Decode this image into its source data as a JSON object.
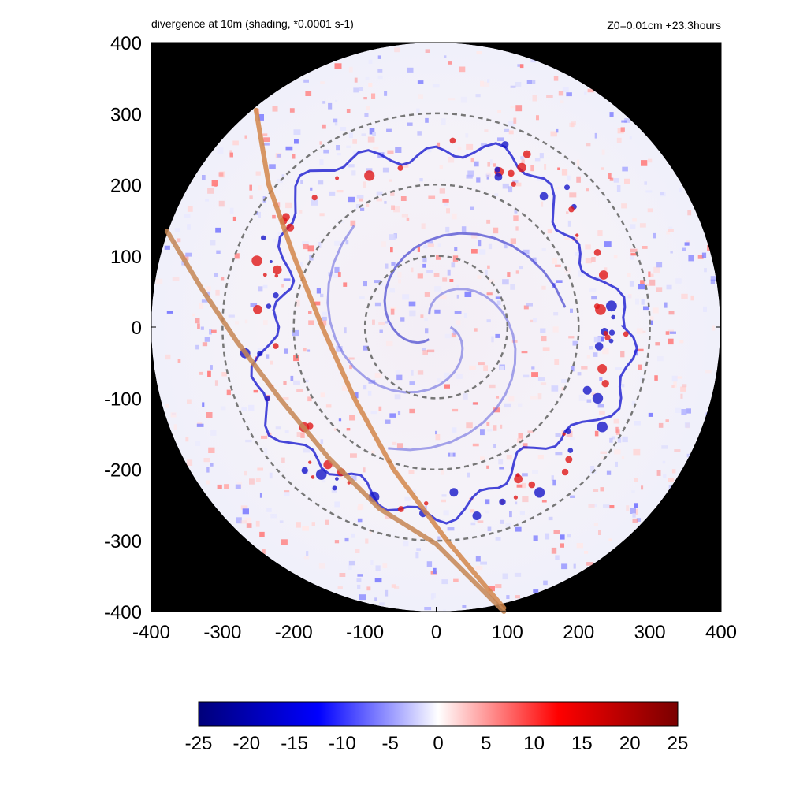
{
  "chart_data": {
    "type": "heatmap",
    "title": "divergence at 10m (shading, *0.0001 s-1)",
    "subtitle": "Z0=0.01cm  +23.3hours",
    "xlim": [
      -400,
      400
    ],
    "ylim": [
      -400,
      400
    ],
    "x_ticks": [
      "-400",
      "-300",
      "-200",
      "-100",
      "0",
      "100",
      "200",
      "300",
      "400"
    ],
    "y_ticks": [
      "400",
      "300",
      "200",
      "100",
      "0",
      "-100",
      "-200",
      "-300",
      "-400"
    ],
    "domain_radius": 400,
    "reference_circles": {
      "radii": [
        100,
        200,
        300
      ],
      "style": "dashed",
      "color": "#777777"
    },
    "track_lines": [
      {
        "color": "#d2864a",
        "points": [
          [
            -253,
            305
          ],
          [
            -235,
            200
          ],
          [
            -200,
            100
          ],
          [
            -160,
            0
          ],
          [
            -115,
            -100
          ],
          [
            -60,
            -200
          ],
          [
            15,
            -300
          ],
          [
            95,
            -395
          ]
        ]
      },
      {
        "color": "#c58654",
        "points": [
          [
            -378,
            135
          ],
          [
            -330,
            55
          ],
          [
            -280,
            -20
          ],
          [
            -220,
            -100
          ],
          [
            -150,
            -185
          ],
          [
            -80,
            -255
          ],
          [
            0,
            -305
          ],
          [
            95,
            -400
          ]
        ]
      }
    ],
    "features": {
      "outer_rainband_ring_radius_approx": 250,
      "inner_spiral_core_radius": 100
    },
    "colorbar": {
      "min": -25,
      "max": 25,
      "ticks": [
        "-25",
        "-20",
        "-15",
        "-10",
        "-5",
        "0",
        "5",
        "10",
        "15",
        "20",
        "25"
      ],
      "colors": [
        "#00007a",
        "#0000ff",
        "#ffffff",
        "#ff0000",
        "#7a0000"
      ]
    }
  }
}
